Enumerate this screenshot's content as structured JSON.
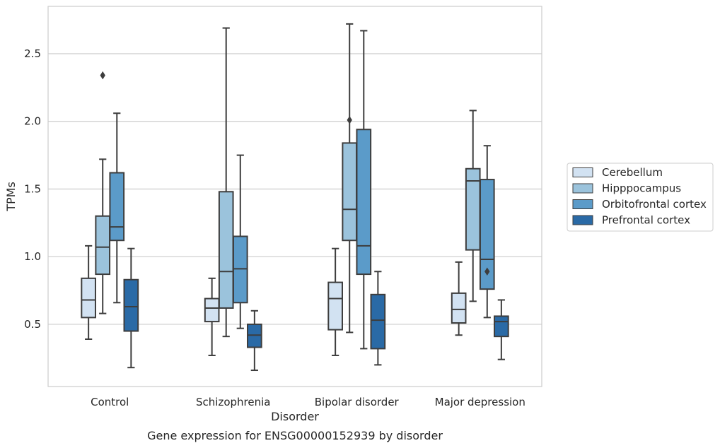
{
  "chart_data": {
    "type": "boxplot",
    "caption": "Gene expression for ENSG00000152939 by disorder",
    "xlabel": "Disorder",
    "ylabel": "TPMs",
    "ylim": [
      0.04,
      2.85
    ],
    "yticks": [
      0.5,
      1.0,
      1.5,
      2.0,
      2.5
    ],
    "ytick_labels": [
      "0.5",
      "1.0",
      "1.5",
      "2.0",
      "2.5"
    ],
    "grid": "horizontal",
    "legend_position": "right",
    "categories": [
      "Control",
      "Schizophrenia",
      "Bipolar disorder",
      "Major depression"
    ],
    "series": [
      {
        "name": "Cerebellum",
        "color": "#d2e2f2",
        "boxes": [
          {
            "whislo": 0.39,
            "q1": 0.55,
            "med": 0.68,
            "q3": 0.84,
            "whishi": 1.08,
            "fliers": []
          },
          {
            "whislo": 0.27,
            "q1": 0.52,
            "med": 0.62,
            "q3": 0.69,
            "whishi": 0.84,
            "fliers": []
          },
          {
            "whislo": 0.27,
            "q1": 0.46,
            "med": 0.69,
            "q3": 0.81,
            "whishi": 1.06,
            "fliers": []
          },
          {
            "whislo": 0.42,
            "q1": 0.51,
            "med": 0.61,
            "q3": 0.73,
            "whishi": 0.96,
            "fliers": []
          }
        ]
      },
      {
        "name": "Hipppocampus",
        "color": "#9bc3dc",
        "boxes": [
          {
            "whislo": 0.58,
            "q1": 0.87,
            "med": 1.07,
            "q3": 1.3,
            "whishi": 1.72,
            "fliers": [
              2.34
            ]
          },
          {
            "whislo": 0.41,
            "q1": 0.62,
            "med": 0.89,
            "q3": 1.48,
            "whishi": 2.69,
            "fliers": []
          },
          {
            "whislo": 0.44,
            "q1": 1.12,
            "med": 1.35,
            "q3": 1.84,
            "whishi": 2.72,
            "fliers": [
              2.01
            ]
          },
          {
            "whislo": 0.67,
            "q1": 1.05,
            "med": 1.56,
            "q3": 1.65,
            "whishi": 2.08,
            "fliers": []
          }
        ]
      },
      {
        "name": "Orbitofrontal cortex",
        "color": "#5b9bc9",
        "boxes": [
          {
            "whislo": 0.66,
            "q1": 1.12,
            "med": 1.22,
            "q3": 1.62,
            "whishi": 2.06,
            "fliers": []
          },
          {
            "whislo": 0.47,
            "q1": 0.66,
            "med": 0.91,
            "q3": 1.15,
            "whishi": 1.75,
            "fliers": []
          },
          {
            "whislo": 0.32,
            "q1": 0.87,
            "med": 1.08,
            "q3": 1.94,
            "whishi": 2.67,
            "fliers": []
          },
          {
            "whislo": 0.55,
            "q1": 0.76,
            "med": 0.98,
            "q3": 1.57,
            "whishi": 1.82,
            "fliers": [
              0.89
            ]
          }
        ]
      },
      {
        "name": "Prefrontal cortex",
        "color": "#2a6aa6",
        "boxes": [
          {
            "whislo": 0.18,
            "q1": 0.45,
            "med": 0.63,
            "q3": 0.83,
            "whishi": 1.06,
            "fliers": []
          },
          {
            "whislo": 0.16,
            "q1": 0.33,
            "med": 0.42,
            "q3": 0.5,
            "whishi": 0.6,
            "fliers": []
          },
          {
            "whislo": 0.2,
            "q1": 0.32,
            "med": 0.53,
            "q3": 0.72,
            "whishi": 0.89,
            "fliers": []
          },
          {
            "whislo": 0.24,
            "q1": 0.41,
            "med": 0.52,
            "q3": 0.56,
            "whishi": 0.68,
            "fliers": []
          }
        ]
      }
    ]
  }
}
